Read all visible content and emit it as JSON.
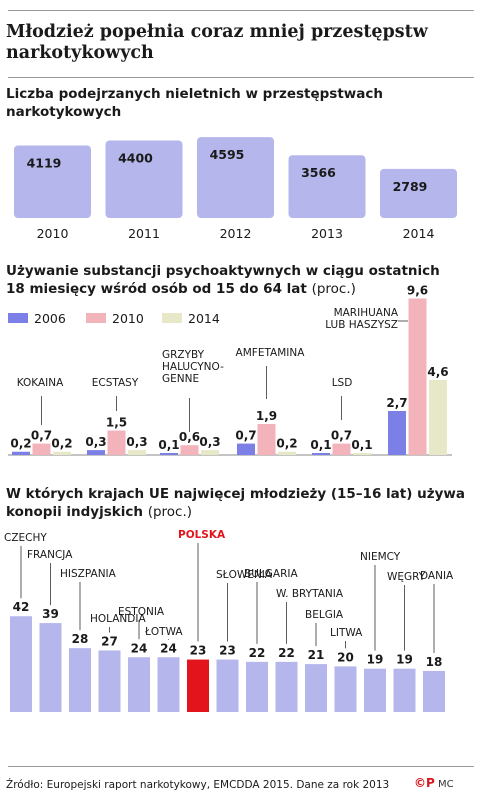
{
  "title": "Młodzież popełnia coraz mniej przestępstw narkotykowych",
  "footer": "Źródło: Europejski raport narkotykowy, EMCDDA 2015. Dane za rok 2013",
  "logo": {
    "mark": "©P",
    "author": "MC"
  },
  "colors": {
    "bar_main": "#b4b6ec",
    "bar_main_dark": "#7e80e6",
    "s2006": "#7b7fe6",
    "s2010": "#f2b3bb",
    "s2014": "#e7e8c8",
    "highlight": "#e3141b"
  },
  "chart_data": [
    {
      "type": "bar",
      "title": "Liczba podejrzanych nieletnich w przestępstwach narkotykowych",
      "categories": [
        "2010",
        "2011",
        "2012",
        "2013",
        "2014"
      ],
      "values": [
        4119,
        4400,
        4595,
        3566,
        2789
      ],
      "labels": [
        "4119",
        "4400",
        "4595",
        "3566",
        "2789"
      ]
    },
    {
      "type": "bar",
      "title": "Używanie substancji psychoaktywnych w ciągu ostatnich 18 miesięcy wśród osób od 15 do 64 lat",
      "unit": "(proc.)",
      "categories": [
        [
          "KOKAINA"
        ],
        [
          "ECSTASY"
        ],
        [
          "GRZYBY",
          "HALUCYNO-",
          "GENNE"
        ],
        [
          "AMFETAMINA"
        ],
        [
          "LSD"
        ],
        [
          "MARIHUANA",
          "LUB HASZYSZ"
        ]
      ],
      "series": [
        {
          "name": "2006",
          "values": [
            0.2,
            0.3,
            0.1,
            0.7,
            0.1,
            2.7
          ],
          "labels": [
            "0,2",
            "0,3",
            "0,1",
            "0,7",
            "0,1",
            "2,7"
          ]
        },
        {
          "name": "2010",
          "values": [
            0.7,
            1.5,
            0.6,
            1.9,
            0.7,
            9.6
          ],
          "labels": [
            "0,7",
            "1,5",
            "0,6",
            "1,9",
            "0,7",
            "9,6"
          ]
        },
        {
          "name": "2014",
          "values": [
            0.2,
            0.3,
            0.3,
            0.2,
            0.1,
            4.6
          ],
          "labels": [
            "0,2",
            "0,3",
            "0,3",
            "0,2",
            "0,1",
            "4,6"
          ]
        }
      ],
      "legend": "top-left"
    },
    {
      "type": "bar",
      "title": "W których krajach UE najwięcej młodzieży (15–16 lat) używa konopii indyjskich",
      "unit": "(proc.)",
      "categories": [
        "CZECHY",
        "FRANCJA",
        "HISZPANIA",
        "HOLANDIA",
        "ESTONIA",
        "ŁOTWA",
        "POLSKA",
        "SŁOWENIA",
        "BUŁGARIA",
        "W. BRYTANIA",
        "BELGIA",
        "LITWA",
        "NIEMCY",
        "WĘGRY",
        "DANIA"
      ],
      "values": [
        42,
        39,
        28,
        27,
        24,
        24,
        23,
        23,
        22,
        22,
        21,
        20,
        19,
        19,
        18
      ],
      "highlight": "POLSKA"
    }
  ]
}
